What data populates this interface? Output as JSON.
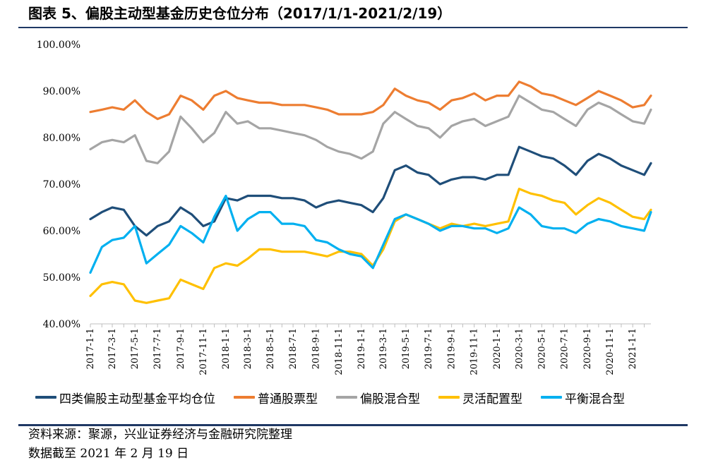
{
  "header": {
    "title": "图表 5、偏股主动型基金历史仓位分布（2017/1/1-2021/2/19）"
  },
  "footer": {
    "source": "资料来源：聚源，兴业证券经济与金融研究院整理",
    "date_note": "数据截至 2021 年 2 月 19 日"
  },
  "chart_data": {
    "type": "line",
    "title": "",
    "xlabel": "",
    "ylabel": "",
    "ylim": [
      40,
      100
    ],
    "yticks": [
      "40.00%",
      "50.00%",
      "60.00%",
      "70.00%",
      "80.00%",
      "90.00%",
      "100.00%"
    ],
    "x_tick_labels": [
      "2017-1-1",
      "2017-3-1",
      "2017-5-1",
      "2017-7-1",
      "2017-9-1",
      "2017-11-1",
      "2018-1-1",
      "2018-3-1",
      "2018-5-1",
      "2018-7-1",
      "2018-9-1",
      "2018-11-1",
      "2019-1-1",
      "2019-3-1",
      "2019-5-1",
      "2019-7-1",
      "2019-9-1",
      "2019-11-1",
      "2020-1-1",
      "2020-3-1",
      "2020-5-1",
      "2020-7-1",
      "2020-9-1",
      "2020-11-1",
      "2021-1-1"
    ],
    "x": [
      "2017-1-1",
      "2017-2-1",
      "2017-3-1",
      "2017-4-1",
      "2017-5-1",
      "2017-6-1",
      "2017-7-1",
      "2017-8-1",
      "2017-9-1",
      "2017-10-1",
      "2017-11-1",
      "2017-12-1",
      "2018-1-1",
      "2018-2-1",
      "2018-3-1",
      "2018-4-1",
      "2018-5-1",
      "2018-6-1",
      "2018-7-1",
      "2018-8-1",
      "2018-9-1",
      "2018-10-1",
      "2018-11-1",
      "2018-12-1",
      "2019-1-1",
      "2019-2-1",
      "2019-3-1",
      "2019-4-1",
      "2019-5-1",
      "2019-6-1",
      "2019-7-1",
      "2019-8-1",
      "2019-9-1",
      "2019-10-1",
      "2019-11-1",
      "2019-12-1",
      "2020-1-1",
      "2020-2-1",
      "2020-3-1",
      "2020-4-1",
      "2020-5-1",
      "2020-6-1",
      "2020-7-1",
      "2020-8-1",
      "2020-9-1",
      "2020-10-1",
      "2020-11-1",
      "2020-12-1",
      "2021-1-1",
      "2021-2-1",
      "2021-2-19"
    ],
    "grid": false,
    "legend_position": "bottom",
    "series": [
      {
        "name": "四类偏股主动型基金平均仓位",
        "color": "#1f4e79",
        "values": [
          62.5,
          64.0,
          65.0,
          64.5,
          61.0,
          59.0,
          61.0,
          62.0,
          65.0,
          63.5,
          61.0,
          62.0,
          67.0,
          66.5,
          67.5,
          67.5,
          67.5,
          67.0,
          67.0,
          66.5,
          65.0,
          66.0,
          66.5,
          66.0,
          65.5,
          64.0,
          67.0,
          73.0,
          74.0,
          72.5,
          72.0,
          70.0,
          71.0,
          71.5,
          71.5,
          71.0,
          72.0,
          72.0,
          78.0,
          77.0,
          76.0,
          75.5,
          74.0,
          72.0,
          75.0,
          76.5,
          75.5,
          74.0,
          73.0,
          72.0,
          74.5
        ]
      },
      {
        "name": "普通股票型",
        "color": "#ed7d31",
        "values": [
          85.5,
          86.0,
          86.5,
          86.0,
          88.0,
          85.5,
          84.0,
          85.0,
          89.0,
          88.0,
          86.0,
          89.0,
          90.0,
          88.5,
          88.0,
          87.5,
          87.5,
          87.0,
          87.0,
          87.0,
          86.5,
          86.0,
          85.0,
          85.0,
          85.0,
          85.5,
          87.0,
          90.5,
          89.0,
          88.0,
          87.5,
          86.0,
          88.0,
          88.5,
          89.5,
          88.0,
          89.0,
          89.0,
          92.0,
          91.0,
          89.5,
          89.0,
          88.0,
          87.0,
          88.5,
          90.0,
          89.0,
          88.0,
          86.5,
          87.0,
          89.0
        ]
      },
      {
        "name": "偏股混合型",
        "color": "#a5a5a5",
        "values": [
          77.5,
          79.0,
          79.5,
          79.0,
          80.5,
          75.0,
          74.5,
          77.0,
          84.5,
          82.0,
          79.0,
          81.0,
          85.5,
          83.0,
          83.5,
          82.0,
          82.0,
          81.5,
          81.0,
          80.5,
          79.5,
          78.0,
          77.0,
          76.5,
          75.5,
          77.0,
          83.0,
          85.5,
          84.0,
          82.5,
          82.0,
          80.0,
          82.5,
          83.5,
          84.0,
          82.5,
          83.5,
          84.5,
          89.0,
          87.5,
          86.0,
          85.5,
          84.0,
          82.5,
          86.0,
          87.5,
          86.5,
          85.0,
          83.5,
          83.0,
          86.0
        ]
      },
      {
        "name": "灵活配置型",
        "color": "#ffc000",
        "values": [
          46.0,
          48.5,
          49.0,
          48.5,
          45.0,
          44.5,
          45.0,
          45.5,
          49.5,
          48.5,
          47.5,
          52.0,
          53.0,
          52.5,
          54.0,
          56.0,
          56.0,
          55.5,
          55.5,
          55.5,
          55.0,
          54.5,
          55.5,
          55.5,
          55.0,
          52.5,
          56.0,
          62.0,
          63.5,
          62.5,
          61.5,
          60.5,
          61.5,
          61.0,
          61.5,
          61.0,
          61.5,
          62.0,
          69.0,
          68.0,
          67.5,
          66.5,
          66.0,
          63.5,
          65.5,
          67.0,
          66.0,
          64.5,
          63.0,
          62.5,
          64.5
        ]
      },
      {
        "name": "平衡混合型",
        "color": "#00b0f0",
        "values": [
          51.0,
          56.5,
          58.0,
          58.5,
          61.0,
          53.0,
          55.0,
          57.0,
          61.0,
          59.5,
          57.5,
          63.0,
          67.5,
          60.0,
          62.5,
          64.0,
          64.0,
          61.5,
          61.5,
          61.0,
          58.0,
          57.5,
          56.0,
          55.0,
          54.5,
          52.0,
          57.0,
          62.5,
          63.5,
          62.5,
          61.5,
          60.0,
          61.0,
          61.0,
          60.5,
          60.5,
          59.5,
          60.5,
          65.0,
          63.5,
          61.0,
          60.5,
          60.5,
          59.5,
          61.5,
          62.5,
          62.0,
          61.0,
          60.5,
          60.0,
          64.0
        ]
      }
    ]
  }
}
